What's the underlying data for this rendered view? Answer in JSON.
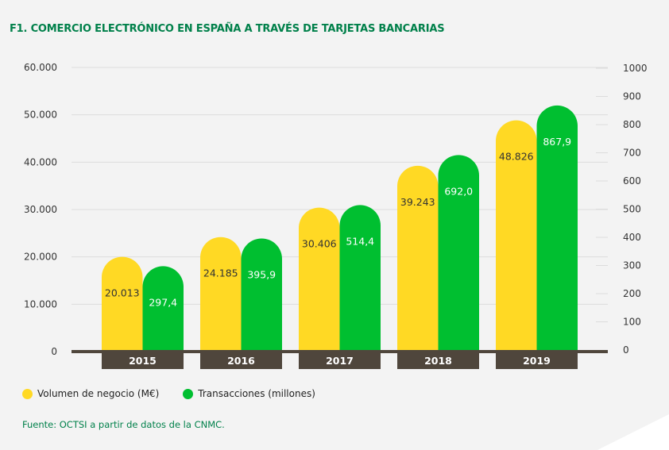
{
  "title": "F1. COMERCIO ELECTRÓNICO EN ESPAÑA A TRAVÉS DE TARJETAS BANCARIAS",
  "source": "Fuente: OCTSI a partir de datos de la CNMC.",
  "colors": {
    "volumen": "#ffd924",
    "transacciones": "#00bf30",
    "axis": "#4f463c",
    "title": "#00804a"
  },
  "chart_data": {
    "type": "bar",
    "title": "F1. COMERCIO ELECTRÓNICO EN ESPAÑA A TRAVÉS DE TARJETAS BANCARIAS",
    "categories": [
      "2015",
      "2016",
      "2017",
      "2018",
      "2019"
    ],
    "series": [
      {
        "name": "Volumen de negocio (M€)",
        "axis": "left",
        "values": [
          20013,
          24185,
          30406,
          39243,
          48826
        ],
        "labels": [
          "20.013",
          "24.185",
          "30.406",
          "39.243",
          "48.826"
        ]
      },
      {
        "name": "Transacciones (millones)",
        "axis": "right",
        "values": [
          297.4,
          395.9,
          514.4,
          692.0,
          867.9
        ],
        "labels": [
          "297,4",
          "395,9",
          "514,4",
          "692,0",
          "867,9"
        ]
      }
    ],
    "y_left": {
      "ylim": [
        0,
        60000
      ],
      "ticks": [
        "0",
        "10.000",
        "20.000",
        "30.000",
        "40.000",
        "50.000",
        "60.000"
      ]
    },
    "y_right": {
      "ylim": [
        0,
        1000
      ],
      "ticks": [
        "0",
        "100",
        "200",
        "300",
        "400",
        "500",
        "600",
        "700",
        "800",
        "900",
        "1000"
      ]
    },
    "grid": true,
    "legend_position": "bottom-left"
  }
}
